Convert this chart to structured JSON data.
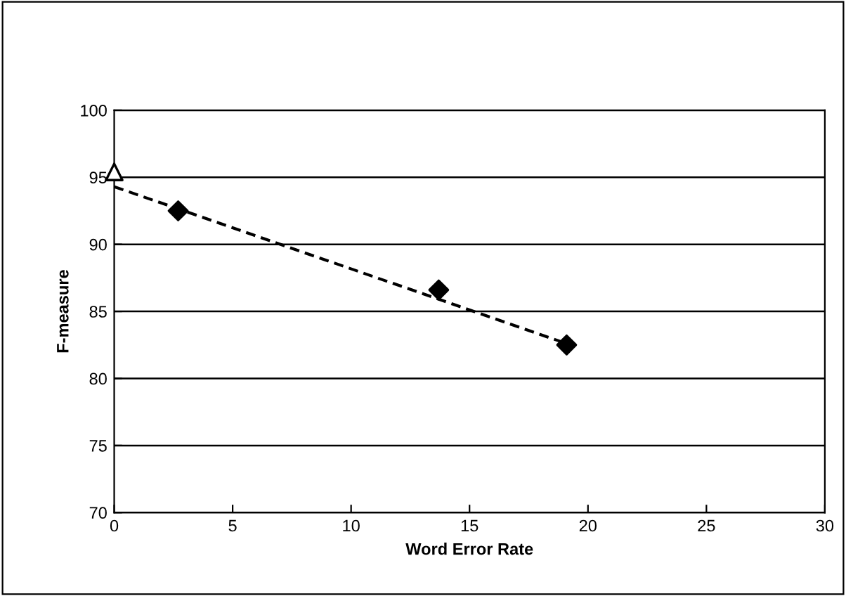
{
  "chart_data": {
    "type": "scatter",
    "xlabel": "Word Error Rate",
    "ylabel": "F-measure",
    "xlim": [
      0,
      30
    ],
    "ylim": [
      70,
      100
    ],
    "xticks": [
      0,
      5,
      10,
      15,
      20,
      25,
      30
    ],
    "yticks": [
      70,
      75,
      80,
      85,
      90,
      95,
      100
    ],
    "grid": "y",
    "series": [
      {
        "marker": "triangle",
        "color": "#ffffff",
        "x": [
          0
        ],
        "values": [
          95.4
        ]
      },
      {
        "marker": "diamond",
        "color": "#000000",
        "x": [
          2.7,
          13.7,
          19.1
        ],
        "values": [
          92.5,
          86.6,
          82.5
        ]
      },
      {
        "type": "line",
        "line_style": "dashed",
        "marker": "none",
        "color": "#000000",
        "x": [
          0,
          19.1
        ],
        "values": [
          94.3,
          82.6
        ]
      }
    ]
  }
}
